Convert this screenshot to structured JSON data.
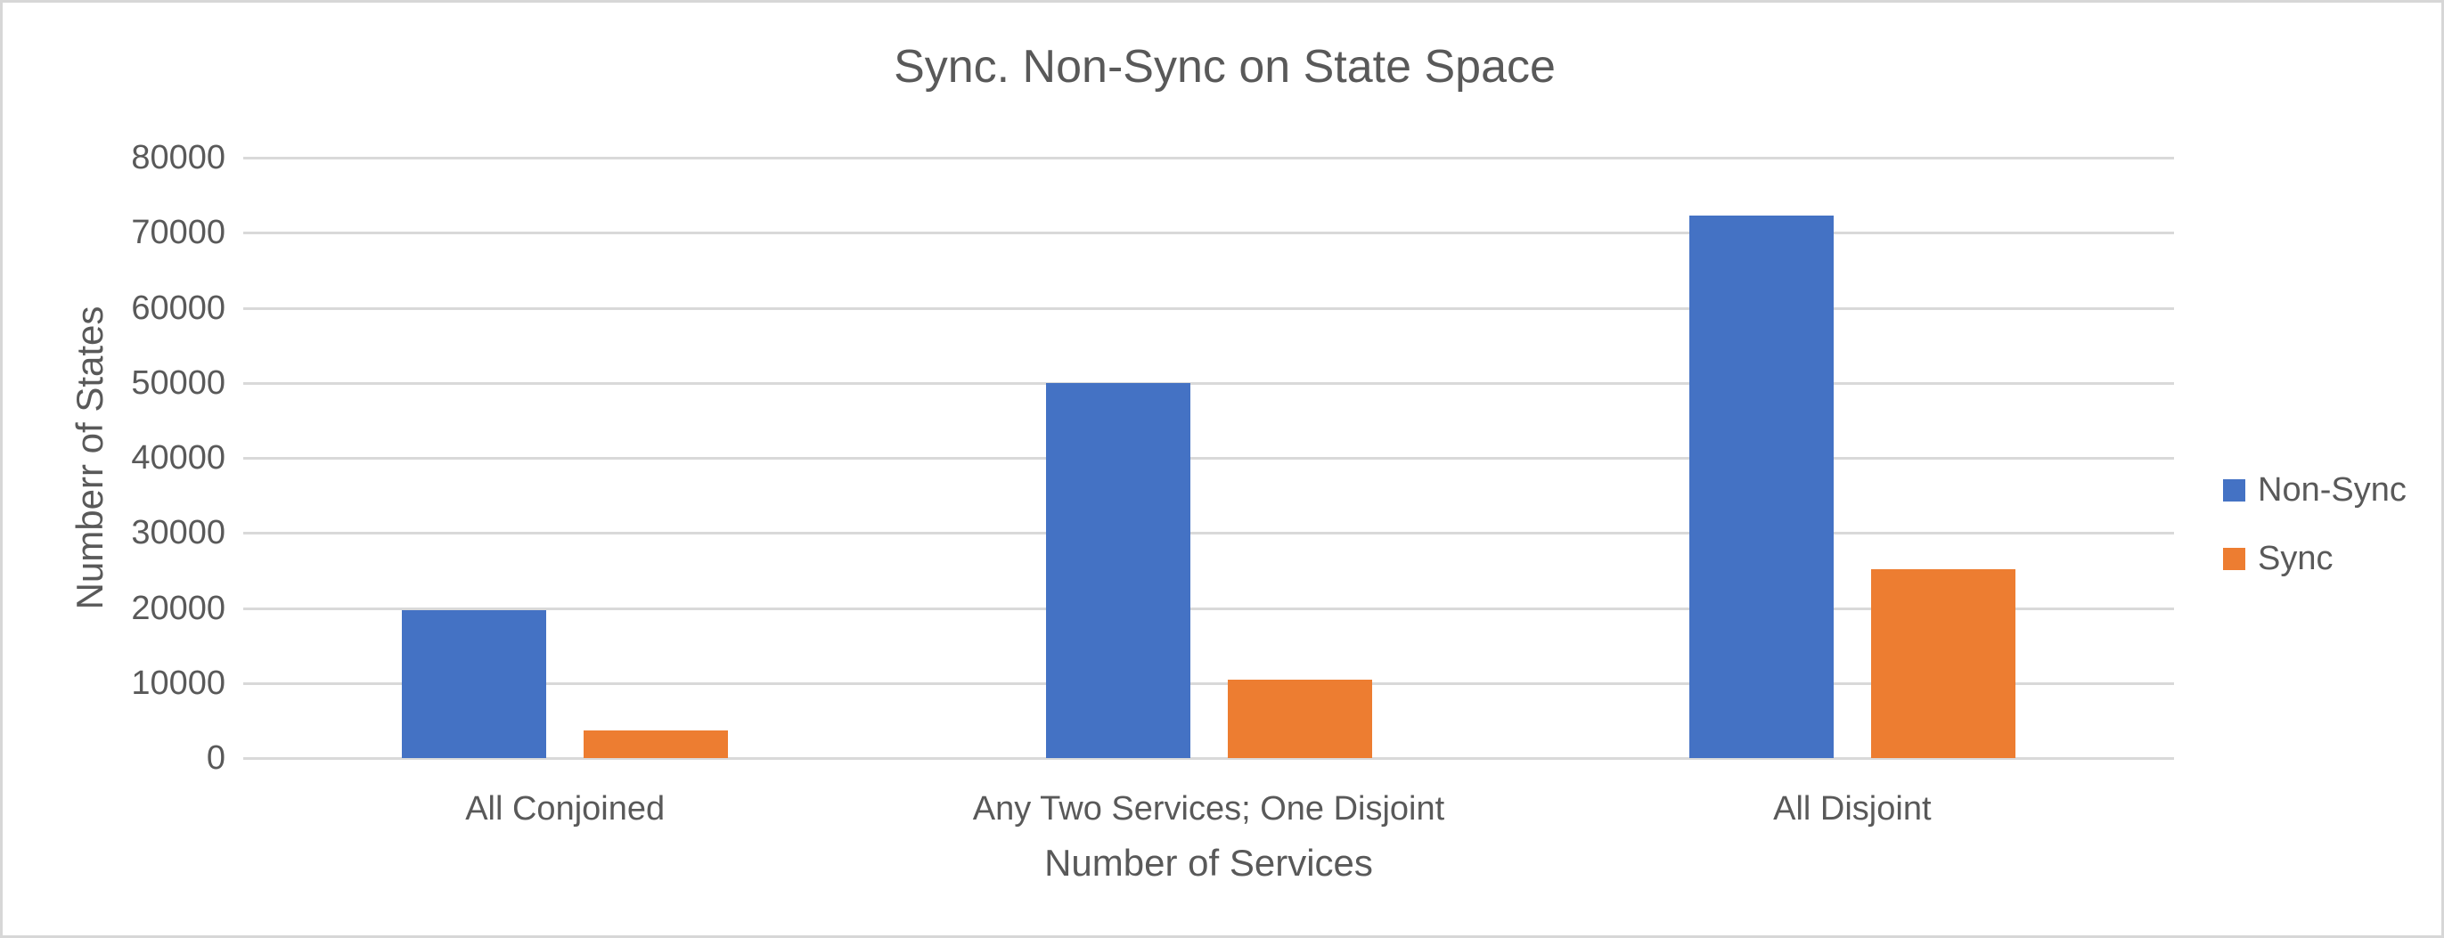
{
  "chart_data": {
    "type": "bar",
    "title": "Sync. Non-Sync on State Space",
    "categories": [
      "All Conjoined",
      "Any Two Services; One Disjoint",
      "All Disjoint"
    ],
    "series": [
      {
        "name": "Non-Sync",
        "color": "#4472C4",
        "values": [
          19700,
          50000,
          72300
        ]
      },
      {
        "name": "Sync",
        "color": "#ED7D31",
        "values": [
          3700,
          10400,
          25200
        ]
      }
    ],
    "xlabel": "Number of Services",
    "ylabel": "Numberr of States",
    "ylim": [
      0,
      80000
    ],
    "y_tick_labels": [
      "0",
      "10000",
      "20000",
      "30000",
      "40000",
      "50000",
      "60000",
      "70000",
      "80000"
    ],
    "grid": true,
    "legend_position": "right"
  },
  "style": {
    "text_color": "#595959",
    "gridline_color": "#D9D9D9",
    "background_color": "#FFFFFF",
    "border_color": "#D7D7D7"
  }
}
